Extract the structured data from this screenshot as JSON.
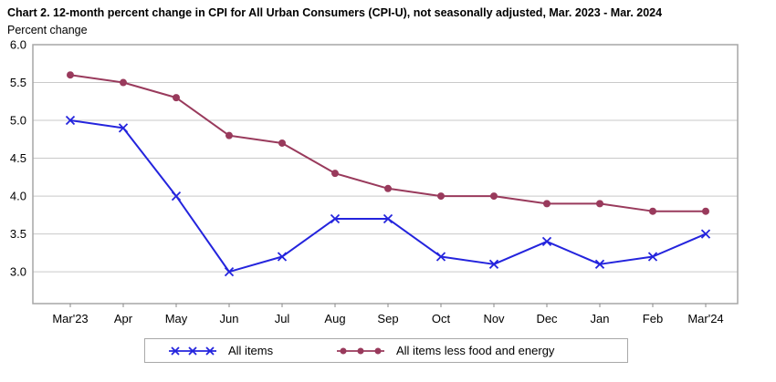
{
  "chart_data": {
    "type": "line",
    "title": "Chart 2. 12-month percent change in CPI for All Urban Consumers (CPI-U), not seasonally adjusted, Mar. 2023 - Mar. 2024",
    "ylabel": "Percent change",
    "xlabel": "",
    "categories": [
      "Mar'23",
      "Apr",
      "May",
      "Jun",
      "Jul",
      "Aug",
      "Sep",
      "Oct",
      "Nov",
      "Dec",
      "Jan",
      "Feb",
      "Mar'24"
    ],
    "series": [
      {
        "name": "All items",
        "marker": "x",
        "color": "#2424dd",
        "values": [
          5.0,
          4.9,
          4.0,
          3.0,
          3.2,
          3.7,
          3.7,
          3.2,
          3.1,
          3.4,
          3.1,
          3.2,
          3.5
        ]
      },
      {
        "name": "All items less food and energy",
        "marker": "circle",
        "color": "#993a5c",
        "values": [
          5.6,
          5.5,
          5.3,
          4.8,
          4.7,
          4.3,
          4.1,
          4.0,
          4.0,
          3.9,
          3.9,
          3.8,
          3.8
        ]
      }
    ],
    "ylim": [
      2.58,
      6.0
    ],
    "yticks": [
      3.0,
      3.5,
      4.0,
      4.5,
      5.0,
      5.5,
      6.0
    ],
    "grid": true,
    "legend_position": "bottom"
  },
  "styles": {
    "grid_color": "#c9c9c9",
    "border_color": "#a6a6a6",
    "tick_color": "#8a8a8a",
    "text_color": "#000000"
  }
}
